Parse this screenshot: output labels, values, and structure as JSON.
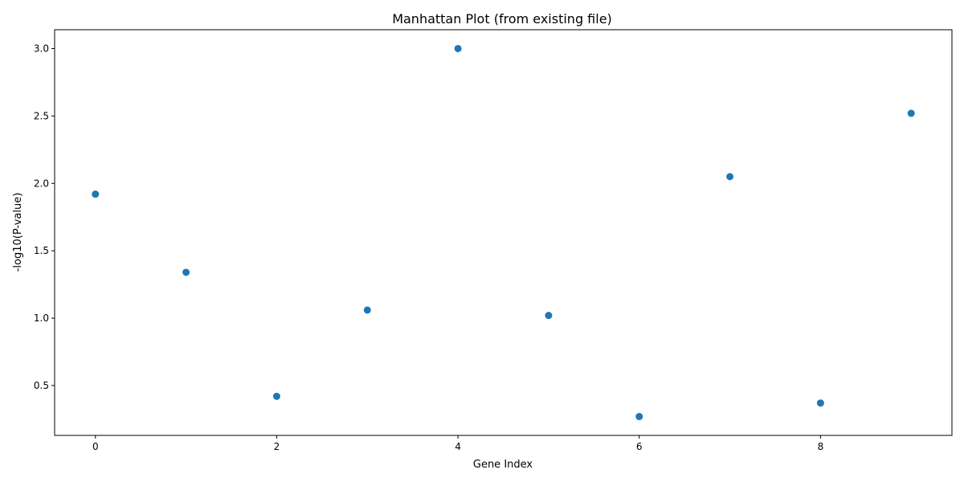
{
  "chart_data": {
    "type": "scatter",
    "title": "Manhattan Plot (from existing file)",
    "xlabel": "Gene Index",
    "ylabel": "-log10(P-value)",
    "xlim": [
      -0.45,
      9.45
    ],
    "ylim": [
      0.13,
      3.14
    ],
    "xticks": [
      0,
      2,
      4,
      6,
      8
    ],
    "xtick_labels": [
      "0",
      "2",
      "4",
      "6",
      "8"
    ],
    "yticks": [
      0.5,
      1.0,
      1.5,
      2.0,
      2.5,
      3.0
    ],
    "ytick_labels": [
      "0.5",
      "1.0",
      "1.5",
      "2.0",
      "2.5",
      "3.0"
    ],
    "grid": false,
    "marker_color": "#1f77b4",
    "series": [
      {
        "x": [
          0,
          1,
          2,
          3,
          4,
          5,
          6,
          7,
          8,
          9
        ],
        "y": [
          1.92,
          1.34,
          0.42,
          1.06,
          3.0,
          1.02,
          0.27,
          2.05,
          0.37,
          2.52
        ]
      }
    ]
  }
}
